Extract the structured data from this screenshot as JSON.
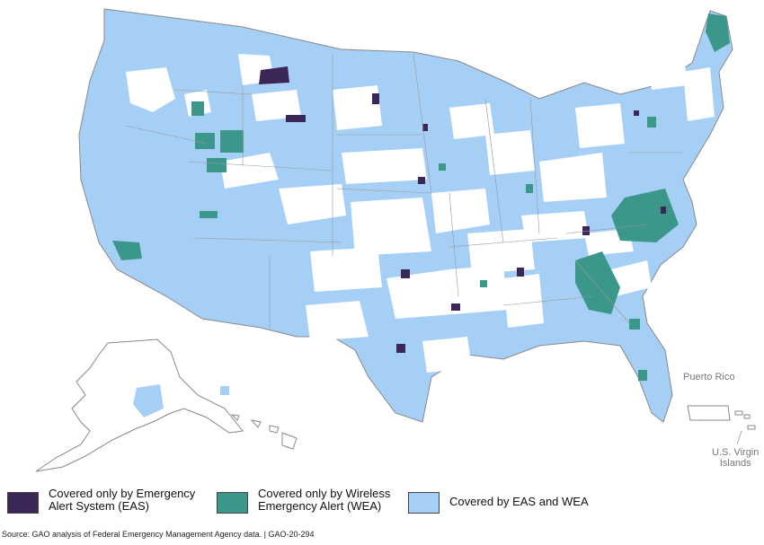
{
  "colors": {
    "eas_only": "#3b2657",
    "wea_only": "#3a978a",
    "both": "#a6cff5",
    "uncovered": "#ffffff",
    "border": "#888888"
  },
  "territories": {
    "puerto_rico": "Puerto Rico",
    "virgin_islands_line1": "U.S. Virgin",
    "virgin_islands_line2": "Islands"
  },
  "legend": {
    "eas_only_label": "Covered only by Emergency Alert System (EAS)",
    "wea_only_label": "Covered only by Wireless Emergency Alert (WEA)",
    "both_label": "Covered by EAS and WEA"
  },
  "source": "Source: GAO analysis of Federal Emergency Management Agency data.  |  GAO-20-294"
}
